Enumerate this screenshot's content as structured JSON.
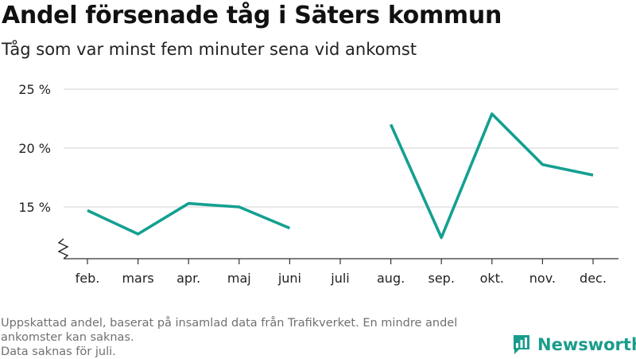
{
  "header": {
    "title": "Andel försenade tåg i Säters kommun",
    "subtitle": "Tåg som var minst fem minuter sena vid ankomst"
  },
  "footnote": {
    "lines": [
      "Uppskattad andel, baserat på insamlad data från Trafikverket. En mindre andel",
      "ankomster kan saknas.",
      "Data saknas för juli."
    ]
  },
  "brand": {
    "name": "Newsworthy",
    "color": "#1a9c8c",
    "icon": "bar-chart-logo-icon"
  },
  "chart_data": {
    "type": "line",
    "title": "Andel försenade tåg i Säters kommun",
    "subtitle": "Tåg som var minst fem minuter sena vid ankomst",
    "categories": [
      "feb.",
      "mars",
      "apr.",
      "maj",
      "juni",
      "juli",
      "aug.",
      "sep.",
      "okt.",
      "nov.",
      "dec."
    ],
    "series": [
      {
        "values": [
          14.7,
          12.7,
          15.3,
          15.0,
          13.2,
          null,
          22.0,
          12.4,
          22.9,
          18.6,
          17.7
        ],
        "color": "#13a090"
      }
    ],
    "yticks": [
      15,
      20,
      25
    ],
    "ytick_labels": [
      "15 %",
      "20 %",
      "25 %"
    ],
    "ylim": [
      11.2,
      25
    ],
    "y_axis_break": true,
    "grid": "horizontal",
    "xlabel": "",
    "ylabel": "",
    "legend": "none"
  }
}
